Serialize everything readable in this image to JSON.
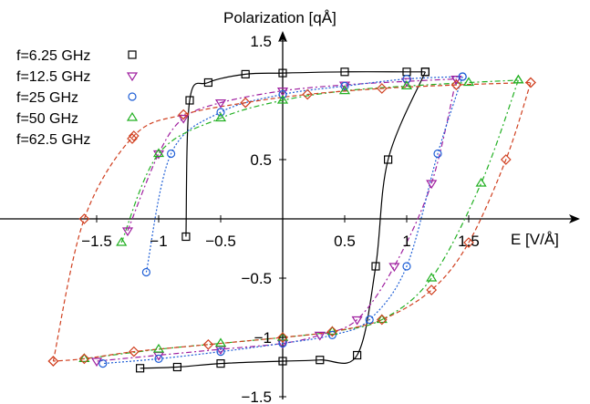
{
  "chart_data": {
    "type": "line",
    "title": "",
    "xlabel": "E [V/Å]",
    "ylabel": "Polarization [qÅ]",
    "xlim": [
      -1.9,
      2.2
    ],
    "ylim": [
      -1.5,
      1.5
    ],
    "x_ticks": [
      "−1.5",
      "−1",
      "−0.5",
      "0.5",
      "1",
      "1.5"
    ],
    "y_ticks": [
      "1.5",
      "0.5",
      "−0.5",
      "−1",
      "−1.5"
    ],
    "grid": false,
    "legend_position": "top-left",
    "series": [
      {
        "name": "f=6.25 GHz",
        "color": "#000000",
        "marker": "square",
        "line": "solid",
        "upper_branch": {
          "x": [
            -0.78,
            -0.75,
            -0.6,
            -0.3,
            0,
            0.5,
            1.0,
            1.15
          ],
          "y": [
            -0.15,
            1.0,
            1.15,
            1.22,
            1.23,
            1.24,
            1.24,
            1.24
          ]
        },
        "lower_branch": {
          "x": [
            1.15,
            0.85,
            0.75,
            0.6,
            0.3,
            0,
            -0.5,
            -0.85,
            -1.15
          ],
          "y": [
            1.24,
            0.5,
            -0.4,
            -1.15,
            -1.19,
            -1.2,
            -1.22,
            -1.25,
            -1.26
          ]
        }
      },
      {
        "name": "f=12.5 GHz",
        "color": "#a020a0",
        "marker": "triangle-down",
        "line": "dash-dot",
        "upper_branch": {
          "x": [
            -1.25,
            -1.0,
            -0.8,
            -0.5,
            0,
            0.5,
            1.0,
            1.4
          ],
          "y": [
            -0.1,
            0.55,
            0.85,
            0.98,
            1.08,
            1.13,
            1.16,
            1.18
          ]
        },
        "lower_branch": {
          "x": [
            1.4,
            1.2,
            0.9,
            0.6,
            0.3,
            0,
            -0.5,
            -1.0,
            -1.5
          ],
          "y": [
            1.18,
            0.3,
            -0.4,
            -0.85,
            -0.98,
            -1.05,
            -1.1,
            -1.15,
            -1.2
          ]
        }
      },
      {
        "name": "f=25 GHz",
        "color": "#1f5fd6",
        "marker": "circle",
        "line": "dotted",
        "upper_branch": {
          "x": [
            -1.1,
            -0.9,
            -0.5,
            0,
            0.5,
            1.0,
            1.45
          ],
          "y": [
            -0.45,
            0.55,
            0.9,
            1.05,
            1.12,
            1.18,
            1.2
          ]
        },
        "lower_branch": {
          "x": [
            1.45,
            1.25,
            1.0,
            0.7,
            0.4,
            0,
            -0.5,
            -1.0,
            -1.45
          ],
          "y": [
            1.2,
            0.55,
            -0.4,
            -0.85,
            -0.98,
            -1.05,
            -1.12,
            -1.18,
            -1.22
          ]
        }
      },
      {
        "name": "f=50 GHz",
        "color": "#22b022",
        "marker": "triangle-up",
        "line": "dash-dot",
        "upper_branch": {
          "x": [
            -1.3,
            -1.0,
            -0.5,
            0,
            0.5,
            1.0,
            1.5,
            1.9
          ],
          "y": [
            -0.2,
            0.55,
            0.85,
            1.0,
            1.08,
            1.12,
            1.15,
            1.17
          ]
        },
        "lower_branch": {
          "x": [
            1.9,
            1.6,
            1.2,
            0.8,
            0.4,
            0,
            -0.5,
            -1.0,
            -1.6
          ],
          "y": [
            1.17,
            0.3,
            -0.5,
            -0.85,
            -0.95,
            -1.0,
            -1.05,
            -1.1,
            -1.18
          ]
        }
      },
      {
        "name": "f=62.5 GHz",
        "color": "#d04020",
        "marker": "diamond",
        "line": "dashed",
        "upper_branch": {
          "x": [
            -1.85,
            -1.6,
            -1.2,
            -0.8,
            -0.3,
            0.2,
            0.8,
            1.4,
            2.0
          ],
          "y": [
            -1.2,
            0.0,
            0.7,
            0.88,
            0.98,
            1.05,
            1.1,
            1.13,
            1.15
          ]
        },
        "lower_branch": {
          "x": [
            2.0,
            1.8,
            1.5,
            1.2,
            0.8,
            0.4,
            0,
            -0.6,
            -1.2,
            -1.6,
            -1.85
          ],
          "y": [
            1.15,
            0.5,
            -0.2,
            -0.6,
            -0.85,
            -0.95,
            -1.0,
            -1.06,
            -1.12,
            -1.18,
            -1.2
          ]
        }
      }
    ]
  }
}
